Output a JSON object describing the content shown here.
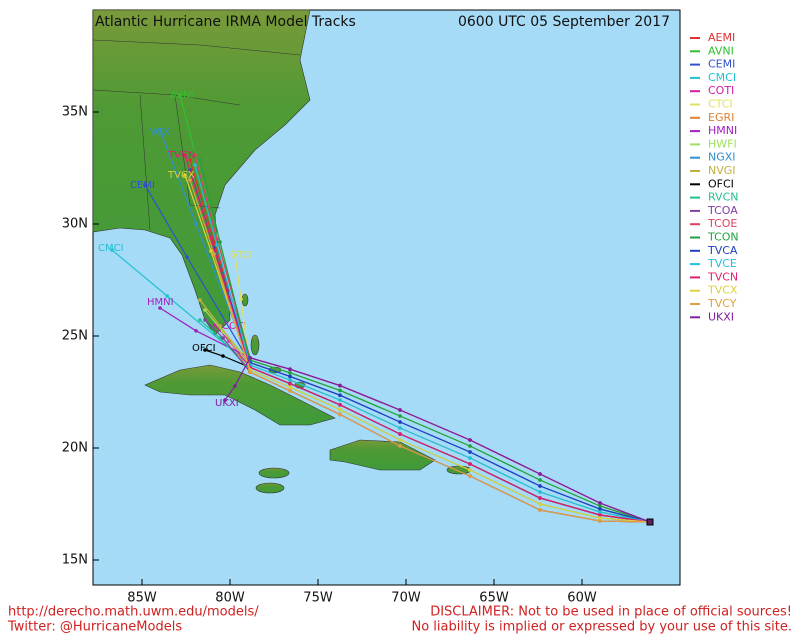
{
  "title": "Atlantic Hurricane IRMA Model Tracks",
  "timestamp": "0600 UTC 05 September 2017",
  "lat_ticks": [
    "35N",
    "30N",
    "25N",
    "20N",
    "15N"
  ],
  "lon_ticks": [
    "85W",
    "80W",
    "75W",
    "70W",
    "65W",
    "60W"
  ],
  "legend": [
    {
      "name": "AEMI",
      "color": "#e03030"
    },
    {
      "name": "AVNI",
      "color": "#30c030"
    },
    {
      "name": "CEMI",
      "color": "#3050d0"
    },
    {
      "name": "CMCI",
      "color": "#20c0d0"
    },
    {
      "name": "COTI",
      "color": "#d020a0"
    },
    {
      "name": "CTCI",
      "color": "#e0e060"
    },
    {
      "name": "EGRI",
      "color": "#e08030"
    },
    {
      "name": "HMNI",
      "color": "#a020c0"
    },
    {
      "name": "HWFI",
      "color": "#a0e060"
    },
    {
      "name": "NGXI",
      "color": "#3090d0"
    },
    {
      "name": "NVGI",
      "color": "#c0b040"
    },
    {
      "name": "OFCI",
      "color": "#000000"
    },
    {
      "name": "RVCN",
      "color": "#20c090"
    },
    {
      "name": "TCOA",
      "color": "#8040a0"
    },
    {
      "name": "TCOE",
      "color": "#e04060"
    },
    {
      "name": "TCON",
      "color": "#20a040"
    },
    {
      "name": "TVCA",
      "color": "#2040c0"
    },
    {
      "name": "TVCE",
      "color": "#20c0e0"
    },
    {
      "name": "TVCN",
      "color": "#e02070"
    },
    {
      "name": "TVCX",
      "color": "#e0d040"
    },
    {
      "name": "TVCY",
      "color": "#e0a040"
    },
    {
      "name": "UKXI",
      "color": "#8020a0"
    }
  ],
  "footer": {
    "url": "http://derecho.math.uwm.edu/models/",
    "twitter": "Twitter: @HurricaneModels",
    "disclaimer": "DISCLAIMER: Not to be used in place of official sources!",
    "liability": "No liability is implied or expressed by your use of this site."
  }
}
